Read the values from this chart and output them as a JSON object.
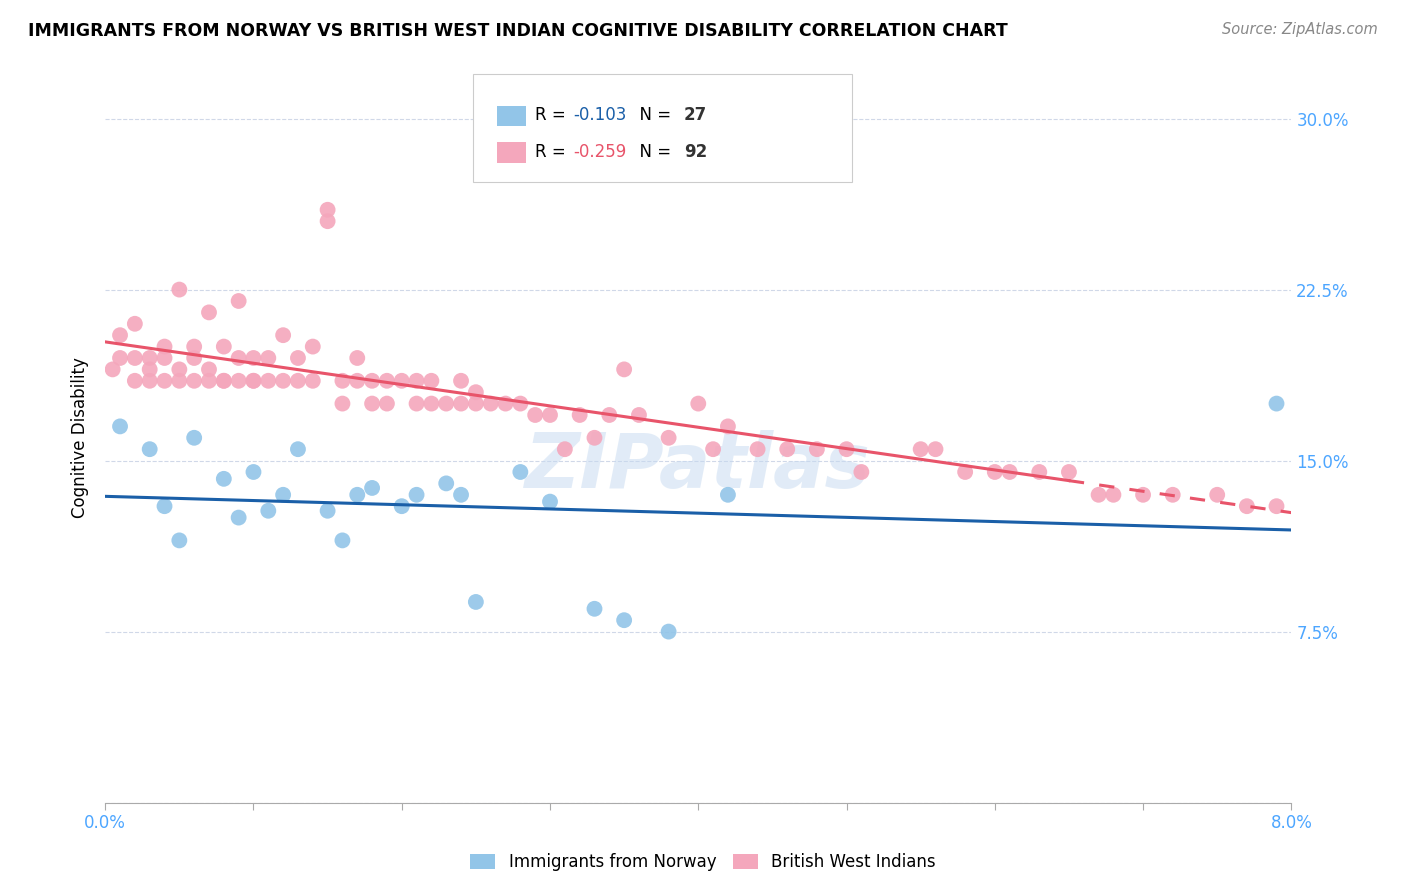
{
  "title": "IMMIGRANTS FROM NORWAY VS BRITISH WEST INDIAN COGNITIVE DISABILITY CORRELATION CHART",
  "source": "Source: ZipAtlas.com",
  "ylabel": "Cognitive Disability",
  "ytick_values": [
    0.0,
    0.075,
    0.15,
    0.225,
    0.3
  ],
  "ytick_labels": [
    "",
    "7.5%",
    "15.0%",
    "22.5%",
    "30.0%"
  ],
  "xlim": [
    0.0,
    0.08
  ],
  "ylim": [
    0.0,
    0.32
  ],
  "norway_R": -0.103,
  "norway_N": 27,
  "bwi_R": -0.259,
  "bwi_N": 92,
  "norway_color": "#92c5e8",
  "bwi_color": "#f4a7bc",
  "norway_line_color": "#1a5fa8",
  "bwi_line_color": "#e8546a",
  "bwi_line_solid_end": 0.065,
  "watermark": "ZIPatlas",
  "legend_norway_R_color": "#1a5fa8",
  "legend_norway_N_color": "#333333",
  "legend_bwi_R_color": "#e8546a",
  "legend_bwi_N_color": "#333333",
  "norway_x": [
    0.001,
    0.003,
    0.004,
    0.005,
    0.006,
    0.008,
    0.009,
    0.01,
    0.011,
    0.012,
    0.013,
    0.015,
    0.016,
    0.017,
    0.018,
    0.02,
    0.021,
    0.023,
    0.024,
    0.025,
    0.028,
    0.03,
    0.033,
    0.035,
    0.038,
    0.042,
    0.079
  ],
  "norway_y": [
    0.165,
    0.155,
    0.13,
    0.115,
    0.16,
    0.142,
    0.125,
    0.145,
    0.128,
    0.135,
    0.155,
    0.128,
    0.115,
    0.135,
    0.138,
    0.13,
    0.135,
    0.14,
    0.135,
    0.088,
    0.145,
    0.132,
    0.085,
    0.08,
    0.075,
    0.135,
    0.175
  ],
  "bwi_x": [
    0.0005,
    0.001,
    0.001,
    0.002,
    0.002,
    0.002,
    0.003,
    0.003,
    0.003,
    0.004,
    0.004,
    0.004,
    0.005,
    0.005,
    0.005,
    0.006,
    0.006,
    0.006,
    0.007,
    0.007,
    0.007,
    0.008,
    0.008,
    0.008,
    0.009,
    0.009,
    0.009,
    0.01,
    0.01,
    0.01,
    0.011,
    0.011,
    0.012,
    0.012,
    0.013,
    0.013,
    0.014,
    0.014,
    0.015,
    0.015,
    0.016,
    0.016,
    0.017,
    0.017,
    0.018,
    0.018,
    0.019,
    0.019,
    0.02,
    0.021,
    0.021,
    0.022,
    0.022,
    0.023,
    0.024,
    0.024,
    0.025,
    0.025,
    0.026,
    0.027,
    0.028,
    0.029,
    0.03,
    0.031,
    0.032,
    0.033,
    0.034,
    0.035,
    0.036,
    0.038,
    0.04,
    0.041,
    0.042,
    0.044,
    0.046,
    0.048,
    0.05,
    0.051,
    0.055,
    0.056,
    0.058,
    0.06,
    0.061,
    0.063,
    0.065,
    0.067,
    0.068,
    0.07,
    0.072,
    0.075,
    0.077,
    0.079
  ],
  "bwi_y": [
    0.19,
    0.205,
    0.195,
    0.195,
    0.185,
    0.21,
    0.195,
    0.185,
    0.19,
    0.2,
    0.185,
    0.195,
    0.225,
    0.19,
    0.185,
    0.195,
    0.185,
    0.2,
    0.19,
    0.185,
    0.215,
    0.185,
    0.2,
    0.185,
    0.22,
    0.185,
    0.195,
    0.185,
    0.195,
    0.185,
    0.195,
    0.185,
    0.205,
    0.185,
    0.185,
    0.195,
    0.185,
    0.2,
    0.26,
    0.255,
    0.185,
    0.175,
    0.185,
    0.195,
    0.185,
    0.175,
    0.185,
    0.175,
    0.185,
    0.175,
    0.185,
    0.175,
    0.185,
    0.175,
    0.185,
    0.175,
    0.175,
    0.18,
    0.175,
    0.175,
    0.175,
    0.17,
    0.17,
    0.155,
    0.17,
    0.16,
    0.17,
    0.19,
    0.17,
    0.16,
    0.175,
    0.155,
    0.165,
    0.155,
    0.155,
    0.155,
    0.155,
    0.145,
    0.155,
    0.155,
    0.145,
    0.145,
    0.145,
    0.145,
    0.145,
    0.135,
    0.135,
    0.135,
    0.135,
    0.135,
    0.13,
    0.13
  ]
}
